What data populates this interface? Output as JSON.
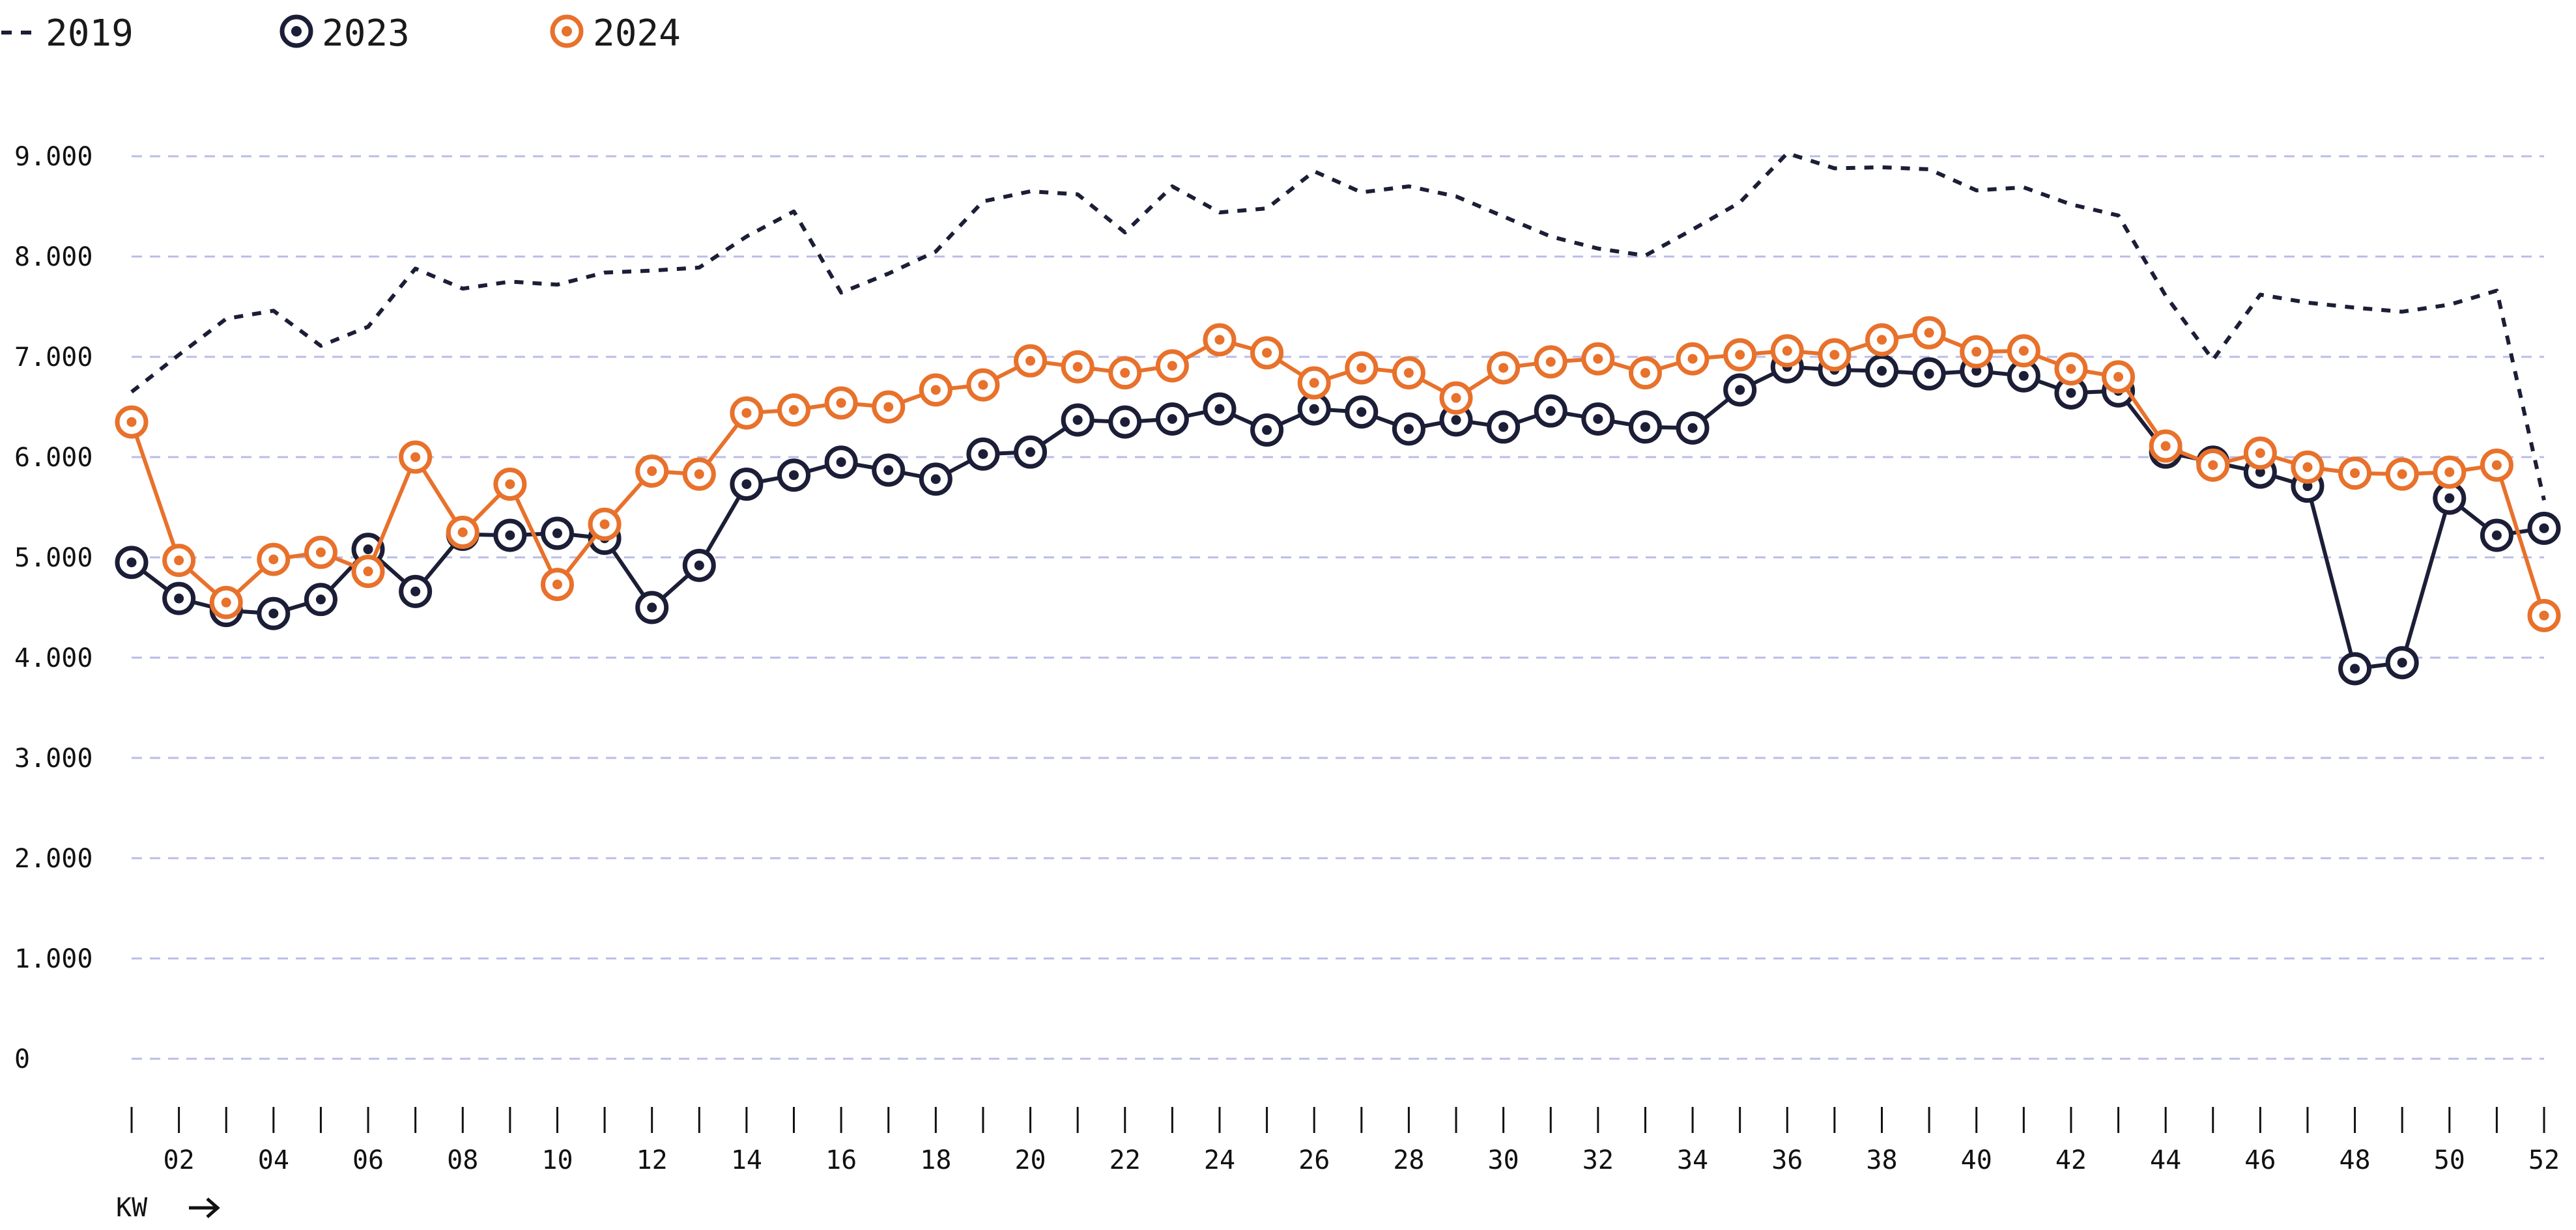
{
  "chart_data": {
    "type": "line",
    "xlabel": "KW",
    "ylim": [
      0,
      9000
    ],
    "y_ticks": [
      {
        "value": 0,
        "label": "0"
      },
      {
        "value": 1000,
        "label": "1.000"
      },
      {
        "value": 2000,
        "label": "2.000"
      },
      {
        "value": 3000,
        "label": "3.000"
      },
      {
        "value": 4000,
        "label": "4.000"
      },
      {
        "value": 5000,
        "label": "5.000"
      },
      {
        "value": 6000,
        "label": "6.000"
      },
      {
        "value": 7000,
        "label": "7.000"
      },
      {
        "value": 8000,
        "label": "8.000"
      },
      {
        "value": 9000,
        "label": "9.000"
      }
    ],
    "x_tick_labels": [
      "02",
      "04",
      "06",
      "08",
      "10",
      "12",
      "14",
      "16",
      "18",
      "20",
      "22",
      "24",
      "26",
      "28",
      "30",
      "32",
      "34",
      "36",
      "38",
      "40",
      "42",
      "44",
      "46",
      "48",
      "50",
      "52"
    ],
    "x": [
      1,
      2,
      3,
      4,
      5,
      6,
      7,
      8,
      9,
      10,
      11,
      12,
      13,
      14,
      15,
      16,
      17,
      18,
      19,
      20,
      21,
      22,
      23,
      24,
      25,
      26,
      27,
      28,
      29,
      30,
      31,
      32,
      33,
      34,
      35,
      36,
      37,
      38,
      39,
      40,
      41,
      42,
      43,
      44,
      45,
      46,
      47,
      48,
      49,
      50,
      51,
      52
    ],
    "grid": true,
    "legend_position": "top-left",
    "series": [
      {
        "name": "2019",
        "style": "dashed-line",
        "color": "#1b1e36",
        "values": [
          6650,
          7020,
          7380,
          7460,
          7110,
          7300,
          7880,
          7680,
          7750,
          7720,
          7840,
          7860,
          7890,
          8200,
          8450,
          7640,
          7830,
          8050,
          8550,
          8650,
          8620,
          8240,
          8700,
          8440,
          8480,
          8850,
          8640,
          8700,
          8600,
          8400,
          8200,
          8080,
          8010,
          8270,
          8540,
          9030,
          8880,
          8890,
          8870,
          8660,
          8690,
          8520,
          8410,
          7610,
          6970,
          7620,
          7540,
          7490,
          7450,
          7520,
          7660,
          5570
        ]
      },
      {
        "name": "2023",
        "style": "line-markers",
        "color": "#1b1e36",
        "values": [
          4950,
          4590,
          4470,
          4440,
          4580,
          5080,
          4660,
          5230,
          5220,
          5240,
          5190,
          4500,
          4920,
          5730,
          5820,
          5950,
          5870,
          5780,
          6030,
          6050,
          6370,
          6350,
          6380,
          6480,
          6270,
          6480,
          6450,
          6280,
          6370,
          6300,
          6460,
          6380,
          6300,
          6290,
          6670,
          6900,
          6870,
          6860,
          6830,
          6860,
          6810,
          6640,
          6660,
          6050,
          5950,
          5850,
          5710,
          3890,
          3950,
          5590,
          5220,
          5290
        ]
      },
      {
        "name": "2024",
        "style": "line-markers",
        "color": "#e8712b",
        "values": [
          6350,
          4970,
          4550,
          4980,
          5050,
          4860,
          6000,
          5250,
          5730,
          4730,
          5330,
          5860,
          5830,
          6440,
          6470,
          6540,
          6500,
          6670,
          6720,
          6960,
          6900,
          6840,
          6910,
          7170,
          7040,
          6740,
          6890,
          6840,
          6590,
          6890,
          6950,
          6980,
          6840,
          6980,
          7020,
          7060,
          7020,
          7170,
          7240,
          7050,
          7060,
          6880,
          6800,
          6110,
          5920,
          6040,
          5900,
          5840,
          5830,
          5850,
          5920,
          4420
        ]
      }
    ]
  }
}
